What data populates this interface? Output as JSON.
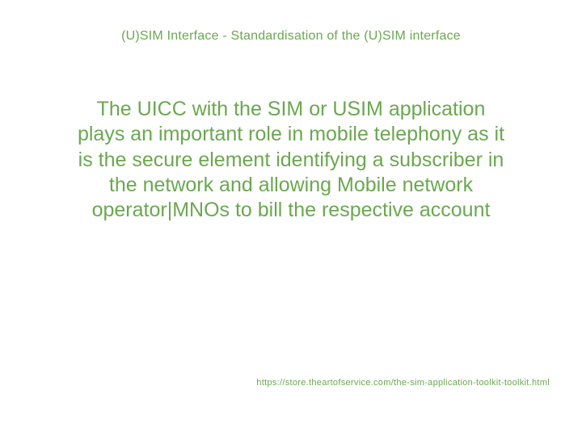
{
  "slide": {
    "title": "(U)SIM Interface - Standardisation of the (U)SIM interface",
    "body": "The UICC with the SIM or USIM application plays an important role in mobile telephony as it is the secure element identifying a subscriber in the network and allowing Mobile network operator|MNOs to bill the respective account",
    "footer_url": "https://store.theartofservice.com/the-sim-application-toolkit-toolkit.html"
  },
  "style": {
    "background_color": "#ffffff",
    "text_color": "#6aa84f",
    "title_fontsize": 16,
    "body_fontsize": 25,
    "footer_fontsize": 11,
    "font_family": "Arial"
  }
}
